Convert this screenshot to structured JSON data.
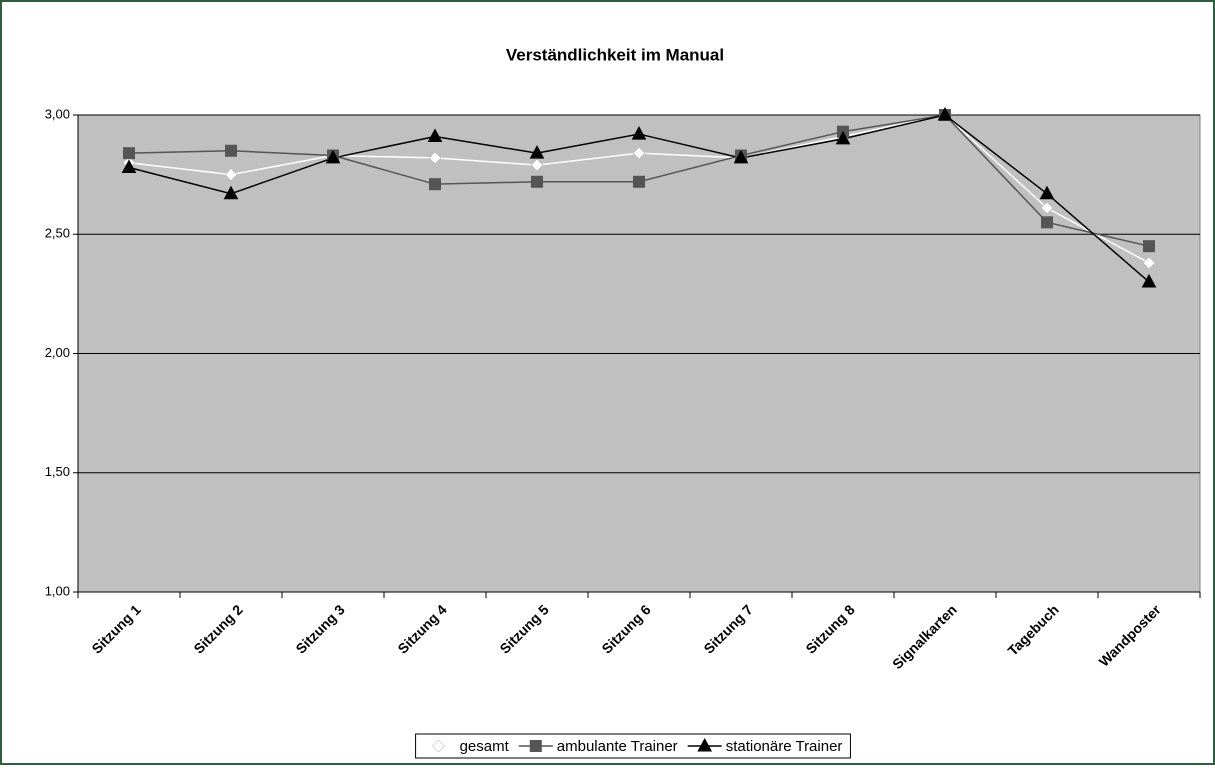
{
  "chart_data": {
    "type": "line",
    "title": "Verständlichkeit im Manual",
    "categories": [
      "Sitzung 1",
      "Sitzung 2",
      "Sitzung 3",
      "Sitzung 4",
      "Sitzung 5",
      "Sitzung 6",
      "Sitzung 7",
      "Sitzung 8",
      "Signalkarten",
      "Tagebuch",
      "Wandposter"
    ],
    "series": [
      {
        "name": "gesamt",
        "color": "#ffffff",
        "marker": "diamond",
        "values": [
          2.8,
          2.75,
          2.83,
          2.82,
          2.79,
          2.84,
          2.82,
          2.91,
          3.0,
          2.61,
          2.38
        ]
      },
      {
        "name": "ambulante Trainer",
        "color": "#555555",
        "marker": "square",
        "values": [
          2.84,
          2.85,
          2.83,
          2.71,
          2.72,
          2.72,
          2.83,
          2.93,
          3.0,
          2.55,
          2.45
        ]
      },
      {
        "name": "stationäre Trainer",
        "color": "#000000",
        "marker": "triangle",
        "values": [
          2.78,
          2.67,
          2.82,
          2.91,
          2.84,
          2.92,
          2.82,
          2.9,
          3.0,
          2.67,
          2.3
        ]
      }
    ],
    "ylim": [
      1,
      3
    ],
    "yticks": [
      {
        "value": 1,
        "label": "1,00"
      },
      {
        "value": 1.5,
        "label": "1,50"
      },
      {
        "value": 2,
        "label": "2,00"
      },
      {
        "value": 2.5,
        "label": "2,50"
      },
      {
        "value": 3,
        "label": "3,00"
      }
    ],
    "grid": true,
    "legend": "bottom",
    "plot_background": "#c0c0c0"
  }
}
